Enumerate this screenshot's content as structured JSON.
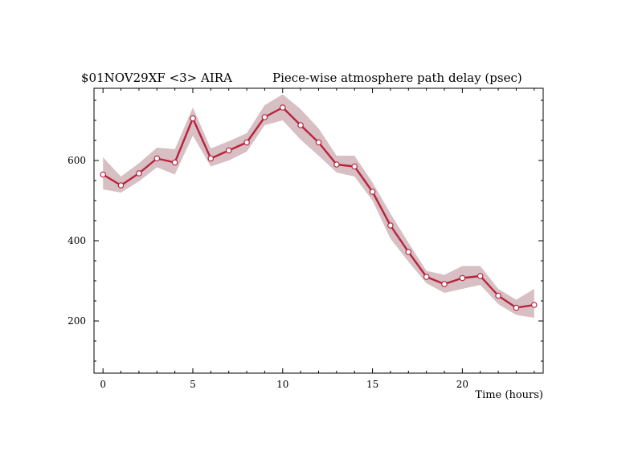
{
  "chart_data": {
    "type": "line",
    "title_left": "$01NOV29XF <3>  AIRA",
    "title_right": "Piece-wise atmosphere path delay (psec)",
    "xlabel": "Time (hours)",
    "ylabel": "",
    "xlim": [
      -0.5,
      24.5
    ],
    "ylim": [
      70,
      780
    ],
    "x_ticks": [
      0,
      5,
      10,
      15,
      20
    ],
    "y_ticks": [
      200,
      400,
      600
    ],
    "grid": false,
    "colors": {
      "line": "#b8233e",
      "band": "#d7bfc3",
      "marker_fill": "#ffffff"
    },
    "series": [
      {
        "x": [
          0,
          1,
          2,
          3,
          4,
          5,
          6,
          7,
          8,
          9,
          10,
          11,
          12,
          13,
          14,
          15,
          16,
          17,
          18,
          19,
          20,
          21,
          22,
          23,
          24
        ],
        "values": [
          565,
          538,
          568,
          605,
          595,
          705,
          605,
          625,
          645,
          708,
          732,
          688,
          645,
          590,
          585,
          522,
          438,
          372,
          310,
          292,
          307,
          312,
          263,
          233,
          240
        ],
        "upper": [
          608,
          560,
          593,
          632,
          628,
          732,
          630,
          648,
          668,
          738,
          765,
          728,
          680,
          612,
          612,
          545,
          468,
          395,
          325,
          315,
          337,
          337,
          280,
          253,
          280
        ],
        "lower": [
          528,
          520,
          548,
          583,
          565,
          662,
          585,
          600,
          622,
          688,
          700,
          652,
          612,
          570,
          560,
          500,
          405,
          348,
          294,
          270,
          280,
          290,
          242,
          215,
          208
        ]
      }
    ]
  }
}
